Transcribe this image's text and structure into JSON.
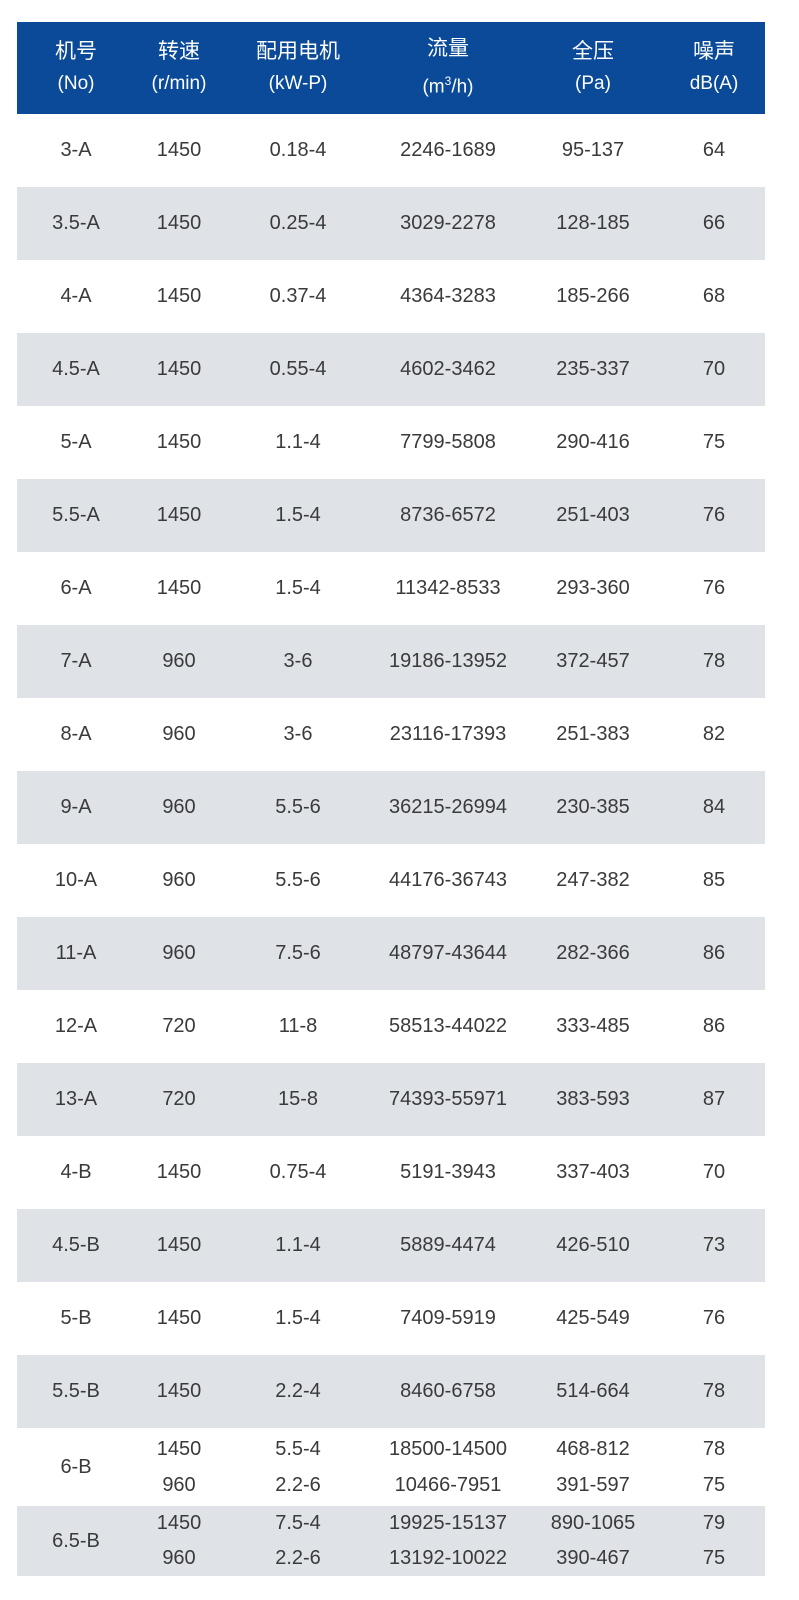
{
  "header": [
    {
      "title": "机号",
      "unit": "(No)"
    },
    {
      "title": "转速",
      "unit": "(r/min)"
    },
    {
      "title": "配用电机",
      "unit": "(kW-P)"
    },
    {
      "title": "流量",
      "unit_pre": "(m",
      "unit_sup": "3",
      "unit_post": "/h)"
    },
    {
      "title": "全压",
      "unit": "(Pa)"
    },
    {
      "title": "噪声",
      "unit": "dB(A)"
    }
  ],
  "rows": [
    [
      "3-A",
      "1450",
      "0.18-4",
      "2246-1689",
      "95-137",
      "64"
    ],
    [
      "3.5-A",
      "1450",
      "0.25-4",
      "3029-2278",
      "128-185",
      "66"
    ],
    [
      "4-A",
      "1450",
      "0.37-4",
      "4364-3283",
      "185-266",
      "68"
    ],
    [
      "4.5-A",
      "1450",
      "0.55-4",
      "4602-3462",
      "235-337",
      "70"
    ],
    [
      "5-A",
      "1450",
      "1.1-4",
      "7799-5808",
      "290-416",
      "75"
    ],
    [
      "5.5-A",
      "1450",
      "1.5-4",
      "8736-6572",
      "251-403",
      "76"
    ],
    [
      "6-A",
      "1450",
      "1.5-4",
      "11342-8533",
      "293-360",
      "76"
    ],
    [
      "7-A",
      "960",
      "3-6",
      "19186-13952",
      "372-457",
      "78"
    ],
    [
      "8-A",
      "960",
      "3-6",
      "23116-17393",
      "251-383",
      "82"
    ],
    [
      "9-A",
      "960",
      "5.5-6",
      "36215-26994",
      "230-385",
      "84"
    ],
    [
      "10-A",
      "960",
      "5.5-6",
      "44176-36743",
      "247-382",
      "85"
    ],
    [
      "11-A",
      "960",
      "7.5-6",
      "48797-43644",
      "282-366",
      "86"
    ],
    [
      "12-A",
      "720",
      "11-8",
      "58513-44022",
      "333-485",
      "86"
    ],
    [
      "13-A",
      "720",
      "15-8",
      "74393-55971",
      "383-593",
      "87"
    ],
    [
      "4-B",
      "1450",
      "0.75-4",
      "5191-3943",
      "337-403",
      "70"
    ],
    [
      "4.5-B",
      "1450",
      "1.1-4",
      "5889-4474",
      "426-510",
      "73"
    ],
    [
      "5-B",
      "1450",
      "1.5-4",
      "7409-5919",
      "425-549",
      "76"
    ],
    [
      "5.5-B",
      "1450",
      "2.2-4",
      "8460-6758",
      "514-664",
      "78"
    ]
  ],
  "double_rows": [
    {
      "no": "6-B",
      "lines": [
        [
          "1450",
          "5.5-4",
          "18500-14500",
          "468-812",
          "78"
        ],
        [
          "960",
          "2.2-6",
          "10466-7951",
          "391-597",
          "75"
        ]
      ]
    },
    {
      "no": "6.5-B",
      "lines": [
        [
          "1450",
          "7.5-4",
          "19925-15137",
          "890-1065",
          "79"
        ],
        [
          "960",
          "2.2-6",
          "13192-10022",
          "390-467",
          "75"
        ]
      ]
    }
  ],
  "colors": {
    "header_bg": "#0a4a99",
    "stripe": "#dfe3e8"
  }
}
